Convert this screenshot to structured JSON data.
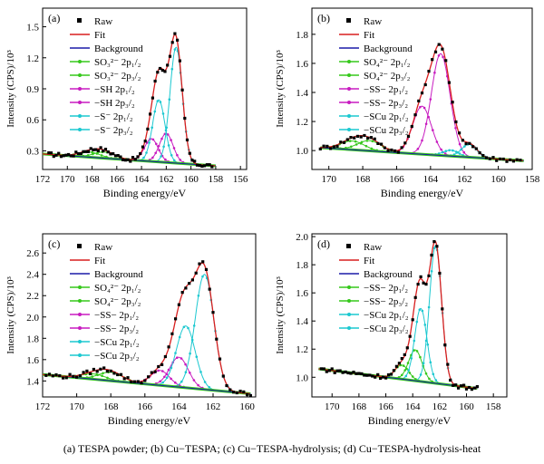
{
  "caption": "(a)  TESPA powder;  (b) Cu−TESPA;  (c) Cu−TESPA-hydrolysis;  (d) Cu−TESPA-hydrolysis-heat",
  "colors": {
    "raw": "#000000",
    "fit": "#d81e1e",
    "background": "#1c1ca8",
    "green": "#36c81c",
    "magenta": "#c81cc0",
    "cyan": "#1cc8d0"
  },
  "chart_data": [
    {
      "type": "line",
      "panel_label": "(a)",
      "xlabel": "Binding energy/eV",
      "ylabel": "Intensity (CPS)/10³",
      "xlim": [
        172,
        155.5
      ],
      "ylim": [
        0.12,
        1.68
      ],
      "xticks": [
        "172",
        "170",
        "168",
        "166",
        "164",
        "162",
        "160",
        "158",
        "156"
      ],
      "yticks": [
        "0.3",
        "0.6",
        "0.9",
        "1.2",
        "1.5"
      ],
      "x_reversed": true,
      "background_line": {
        "x0": 172,
        "y0": 0.27,
        "x1": 158,
        "y1": 0.155
      },
      "legend": [
        {
          "label": "Raw",
          "kind": "raw"
        },
        {
          "label": "Fit",
          "kind": "fit"
        },
        {
          "label": "Background",
          "kind": "background"
        },
        {
          "label": "SO₃²⁻ 2p₁/₂",
          "kind": "green"
        },
        {
          "label": "SO₃²⁻ 2p₃/₂",
          "kind": "green"
        },
        {
          "label": "−SH 2p₁/₂",
          "kind": "magenta"
        },
        {
          "label": "−SH 2p₃/₂",
          "kind": "magenta"
        },
        {
          "label": "−S⁻ 2p₁/₂",
          "kind": "cyan"
        },
        {
          "label": "−S⁻ 2p₃/₂",
          "kind": "cyan"
        }
      ],
      "peaks": [
        {
          "name": "SO₃²⁻ 2p₁/₂",
          "kind": "green",
          "center": 168.2,
          "height": 0.05,
          "sigma": 0.85
        },
        {
          "name": "SO₃²⁻ 2p₃/₂",
          "kind": "green",
          "center": 167.0,
          "height": 0.06,
          "sigma": 0.85
        },
        {
          "name": "−SH 2p₁/₂",
          "kind": "magenta",
          "center": 163.2,
          "height": 0.22,
          "sigma": 0.55
        },
        {
          "name": "−SH 2p₃/₂",
          "kind": "magenta",
          "center": 162.0,
          "height": 0.28,
          "sigma": 0.55
        },
        {
          "name": "−S⁻ 2p₁/₂",
          "kind": "cyan",
          "center": 162.6,
          "height": 0.6,
          "sigma": 0.5
        },
        {
          "name": "−S⁻ 2p₃/₂",
          "kind": "cyan",
          "center": 161.2,
          "height": 1.12,
          "sigma": 0.5
        }
      ],
      "raw_range": [
        171.5,
        158.2
      ],
      "raw_step": 0.2
    },
    {
      "type": "line",
      "panel_label": "(b)",
      "xlabel": "Binding energy/eV",
      "ylabel": "Intensity (CPS)/10³",
      "xlim": [
        171,
        158
      ],
      "ylim": [
        0.87,
        1.98
      ],
      "xticks": [
        "170",
        "168",
        "166",
        "164",
        "162",
        "160",
        "158"
      ],
      "yticks": [
        "1.0",
        "1.2",
        "1.4",
        "1.6",
        "1.8"
      ],
      "x_reversed": true,
      "background_line": {
        "x0": 170.5,
        "y0": 1.02,
        "x1": 158.5,
        "y1": 0.93
      },
      "legend": [
        {
          "label": "Raw",
          "kind": "raw"
        },
        {
          "label": "Fit",
          "kind": "fit"
        },
        {
          "label": "Background",
          "kind": "background"
        },
        {
          "label": "SO₄²⁻ 2p₁/₂",
          "kind": "green"
        },
        {
          "label": "SO₄²⁻ 2p₃/₂",
          "kind": "green"
        },
        {
          "label": "−SS−  2p₁/₂",
          "kind": "magenta"
        },
        {
          "label": "−SS−  2p₃/₂",
          "kind": "magenta"
        },
        {
          "label": "−SCu  2p₁/₂",
          "kind": "cyan"
        },
        {
          "label": "−SCu  2p₃/₂",
          "kind": "cyan"
        }
      ],
      "peaks": [
        {
          "name": "SO₄²⁻ 2p₁/₂",
          "kind": "green",
          "center": 168.6,
          "height": 0.06,
          "sigma": 0.7
        },
        {
          "name": "SO₄²⁻ 2p₃/₂",
          "kind": "green",
          "center": 167.6,
          "height": 0.07,
          "sigma": 0.7
        },
        {
          "name": "−SS−  2p₁/₂",
          "kind": "magenta",
          "center": 164.5,
          "height": 0.33,
          "sigma": 0.55
        },
        {
          "name": "−SS−  2p₃/₂",
          "kind": "magenta",
          "center": 163.4,
          "height": 0.7,
          "sigma": 0.55
        },
        {
          "name": "−SCu  2p₁/₂",
          "kind": "cyan",
          "center": 162.8,
          "height": 0.04,
          "sigma": 0.45
        },
        {
          "name": "−SCu  2p₃/₂",
          "kind": "cyan",
          "center": 161.7,
          "height": 0.09,
          "sigma": 0.45
        }
      ],
      "raw_range": [
        170.5,
        158.6
      ],
      "raw_step": 0.2
    },
    {
      "type": "line",
      "panel_label": "(c)",
      "xlabel": "Binding energy/eV",
      "ylabel": "Intensity (CPS)/10³",
      "xlim": [
        172,
        159.5
      ],
      "ylim": [
        1.25,
        2.78
      ],
      "xticks": [
        "172",
        "170",
        "168",
        "166",
        "164",
        "162",
        "160"
      ],
      "yticks": [
        "1.4",
        "1.6",
        "1.8",
        "2.0",
        "2.2",
        "2.4",
        "2.6"
      ],
      "x_reversed": true,
      "background_line": {
        "x0": 172,
        "y0": 1.46,
        "x1": 159.8,
        "y1": 1.28
      },
      "legend": [
        {
          "label": "Raw",
          "kind": "raw"
        },
        {
          "label": "Fit",
          "kind": "fit"
        },
        {
          "label": "Background",
          "kind": "background"
        },
        {
          "label": "SO₄²⁻ 2p₁/₂",
          "kind": "green"
        },
        {
          "label": "SO₄²⁻ 2p₃/₂",
          "kind": "green"
        },
        {
          "label": "−SS−  2p₁/₂",
          "kind": "magenta"
        },
        {
          "label": "−SS−  2p₃/₂",
          "kind": "magenta"
        },
        {
          "label": "−SCu  2p₁/₂",
          "kind": "cyan"
        },
        {
          "label": "−SCu  2p₃/₂",
          "kind": "cyan"
        }
      ],
      "peaks": [
        {
          "name": "SO₄²⁻ 2p₁/₂",
          "kind": "green",
          "center": 169.0,
          "height": 0.05,
          "sigma": 0.7
        },
        {
          "name": "SO₄²⁻ 2p₃/₂",
          "kind": "green",
          "center": 168.0,
          "height": 0.08,
          "sigma": 0.7
        },
        {
          "name": "−SS−  2p₁/₂",
          "kind": "magenta",
          "center": 165.1,
          "height": 0.14,
          "sigma": 0.55
        },
        {
          "name": "−SS−  2p₃/₂",
          "kind": "magenta",
          "center": 164.0,
          "height": 0.28,
          "sigma": 0.55
        },
        {
          "name": "−SCu  2p₁/₂",
          "kind": "cyan",
          "center": 163.6,
          "height": 0.58,
          "sigma": 0.55
        },
        {
          "name": "−SCu  2p₃/₂",
          "kind": "cyan",
          "center": 162.5,
          "height": 1.08,
          "sigma": 0.55
        }
      ],
      "raw_range": [
        171.8,
        159.8
      ],
      "raw_step": 0.2
    },
    {
      "type": "line",
      "panel_label": "(d)",
      "xlabel": "Binding energy/eV",
      "ylabel": "Intensity (CPS)/10³",
      "xlim": [
        171.5,
        157
      ],
      "ylim": [
        0.86,
        2.02
      ],
      "xticks": [
        "170",
        "168",
        "166",
        "164",
        "162",
        "160",
        "158"
      ],
      "yticks": [
        "1.0",
        "1.2",
        "1.4",
        "1.6",
        "1.8",
        "2.0"
      ],
      "x_reversed": true,
      "background_line": {
        "x0": 171,
        "y0": 1.06,
        "x1": 159.2,
        "y1": 0.92
      },
      "legend": [
        {
          "label": "Raw",
          "kind": "raw"
        },
        {
          "label": "Fit",
          "kind": "fit"
        },
        {
          "label": "Background",
          "kind": "background"
        },
        {
          "label": "−SS−  2p₁/₂",
          "kind": "green"
        },
        {
          "label": "−SS−  2p₃/₂",
          "kind": "green"
        },
        {
          "label": "−SCu 2p₁/₂",
          "kind": "cyan"
        },
        {
          "label": "−SCu 2p₃/₂",
          "kind": "cyan"
        }
      ],
      "peaks": [
        {
          "name": "−SS−  2p₁/₂",
          "kind": "green",
          "center": 164.8,
          "height": 0.1,
          "sigma": 0.5
        },
        {
          "name": "−SS−  2p₃/₂",
          "kind": "green",
          "center": 163.8,
          "height": 0.22,
          "sigma": 0.5
        },
        {
          "name": "−SCu 2p₁/₂",
          "kind": "cyan",
          "center": 163.4,
          "height": 0.52,
          "sigma": 0.45
        },
        {
          "name": "−SCu 2p₃/₂",
          "kind": "cyan",
          "center": 162.3,
          "height": 0.98,
          "sigma": 0.45
        }
      ],
      "raw_range": [
        170.8,
        159.2
      ],
      "raw_step": 0.2
    }
  ]
}
